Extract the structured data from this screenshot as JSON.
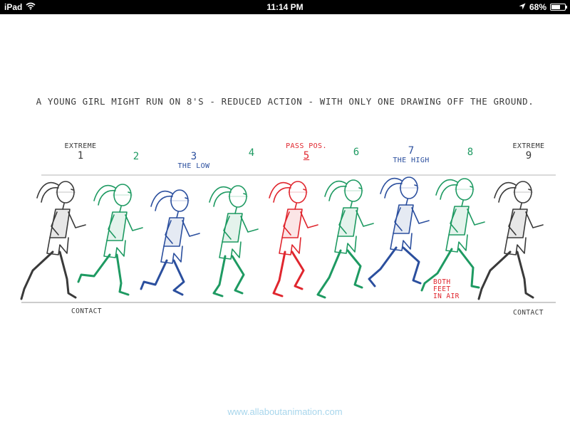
{
  "status_bar": {
    "device": "iPad",
    "time": "11:14 PM",
    "battery": "68%",
    "battery_level": 0.68,
    "icons": [
      "wifi-icon",
      "location-arrow-icon",
      "battery-icon"
    ]
  },
  "drawing": {
    "caption": "A YOUNG GIRL MIGHT RUN ON 8'S - REDUCED ACTION - WITH ONLY ONE DRAWING OFF THE GROUND.",
    "frames": [
      {
        "number": "1",
        "label": "EXTREME",
        "sub_label": "",
        "bottom_label": "CONTACT",
        "color": "#3a3a3a"
      },
      {
        "number": "2",
        "label": "",
        "sub_label": "",
        "bottom_label": "",
        "color": "#1e9a62"
      },
      {
        "number": "3",
        "label": "",
        "sub_label": "THE LOW",
        "bottom_label": "",
        "color": "#2b4f9e"
      },
      {
        "number": "4",
        "label": "",
        "sub_label": "",
        "bottom_label": "",
        "color": "#1e9a62"
      },
      {
        "number": "5",
        "label": "PASS POS.",
        "sub_label": "",
        "bottom_label": "",
        "color": "#e0262e"
      },
      {
        "number": "6",
        "label": "",
        "sub_label": "",
        "bottom_label": "",
        "color": "#1e9a62"
      },
      {
        "number": "7",
        "label": "",
        "sub_label": "THE HIGH",
        "bottom_label": "",
        "color": "#2b4f9e"
      },
      {
        "number": "8",
        "label": "",
        "sub_label": "",
        "bottom_label": "",
        "color": "#1e9a62"
      },
      {
        "number": "9",
        "label": "EXTREME",
        "sub_label": "",
        "bottom_label": "CONTACT",
        "color": "#3a3a3a"
      }
    ],
    "note_both_feet": [
      "BOTH",
      "FEET",
      "IN AIR"
    ],
    "note_color": "#e0262e"
  },
  "watermark": "www.allaboutanimation.com"
}
